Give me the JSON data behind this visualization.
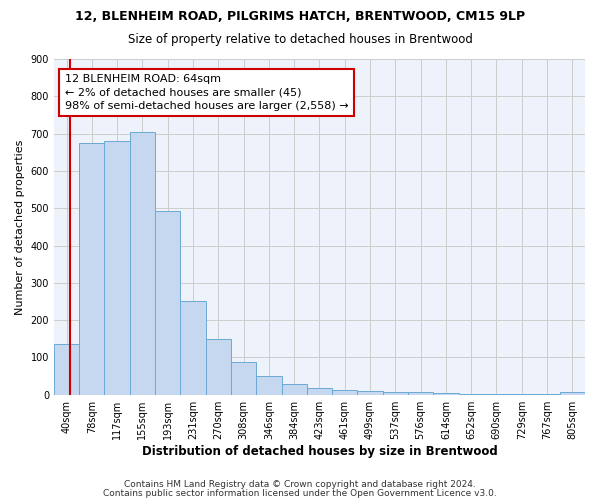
{
  "title1": "12, BLENHEIM ROAD, PILGRIMS HATCH, BRENTWOOD, CM15 9LP",
  "title2": "Size of property relative to detached houses in Brentwood",
  "xlabel": "Distribution of detached houses by size in Brentwood",
  "ylabel": "Number of detached properties",
  "footer1": "Contains HM Land Registry data © Crown copyright and database right 2024.",
  "footer2": "Contains public sector information licensed under the Open Government Licence v3.0.",
  "bin_labels": [
    "40sqm",
    "78sqm",
    "117sqm",
    "155sqm",
    "193sqm",
    "231sqm",
    "270sqm",
    "308sqm",
    "346sqm",
    "384sqm",
    "423sqm",
    "461sqm",
    "499sqm",
    "537sqm",
    "576sqm",
    "614sqm",
    "652sqm",
    "690sqm",
    "729sqm",
    "767sqm",
    "805sqm"
  ],
  "bar_values": [
    135,
    675,
    680,
    705,
    493,
    252,
    150,
    87,
    50,
    28,
    18,
    12,
    10,
    8,
    6,
    4,
    3,
    2,
    2,
    1,
    8
  ],
  "bar_color": "#c5d8f0",
  "bar_edge_color": "#6aaad4",
  "annotation_line1": "12 BLENHEIM ROAD: 64sqm",
  "annotation_line2": "← 2% of detached houses are smaller (45)",
  "annotation_line3": "98% of semi-detached houses are larger (2,558) →",
  "marker_color": "#cc0000",
  "ylim": [
    0,
    900
  ],
  "yticks": [
    0,
    100,
    200,
    300,
    400,
    500,
    600,
    700,
    800,
    900
  ],
  "grid_color": "#cccccc",
  "bg_color": "#eef2fa",
  "annotation_box_color": "#ffffff",
  "annotation_box_edge": "#cc0000",
  "title1_fontsize": 9,
  "title2_fontsize": 8.5,
  "xlabel_fontsize": 8.5,
  "ylabel_fontsize": 8,
  "tick_fontsize": 7,
  "annotation_fontsize": 8,
  "footer_fontsize": 6.5
}
